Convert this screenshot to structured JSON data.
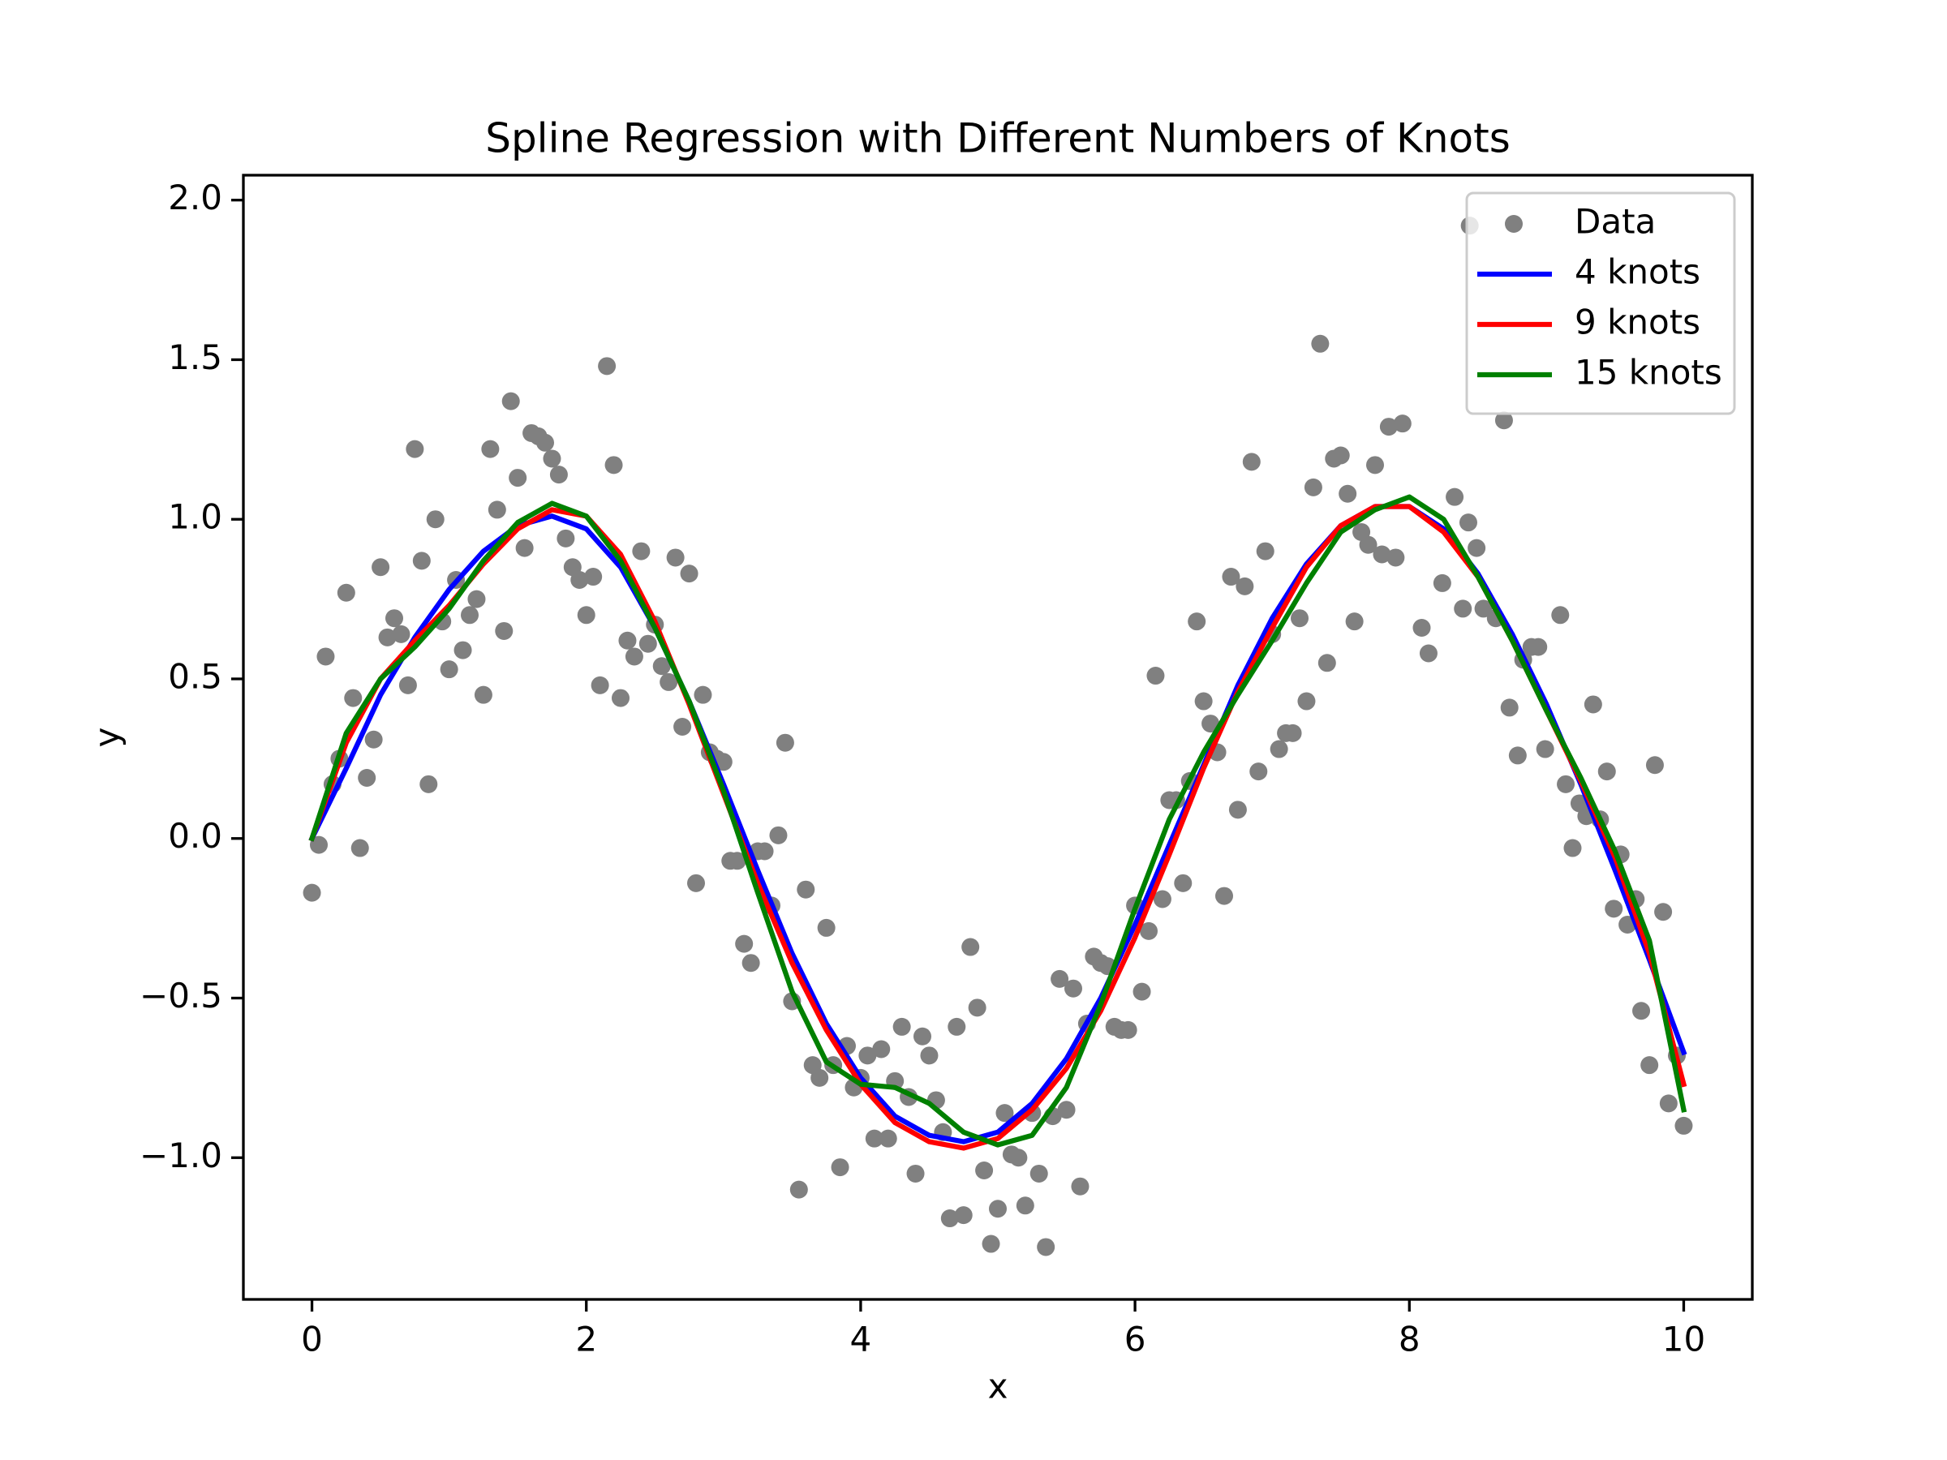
{
  "chart_data": {
    "type": "scatter",
    "title": "Spline Regression with Different Numbers of Knots",
    "xlabel": "x",
    "ylabel": "y",
    "xlim": [
      -0.5,
      10.5
    ],
    "ylim": [
      -1.444,
      2.078
    ],
    "xticks": [
      0,
      2,
      4,
      6,
      8,
      10
    ],
    "yticks": [
      {
        "value": -1.0,
        "label": "−1.0"
      },
      {
        "value": -0.5,
        "label": "−0.5"
      },
      {
        "value": 0.0,
        "label": "0.0"
      },
      0.5,
      {
        "value": 1.0,
        "label": "1.0"
      },
      1.5,
      {
        "value": 2.0,
        "label": "2.0"
      }
    ],
    "legend": "upper right",
    "series": [
      {
        "name": "Data",
        "type": "scatter",
        "color": "#808080",
        "x": [
          0,
          0.05,
          0.1,
          0.15,
          0.2,
          0.25,
          0.3,
          0.35,
          0.4,
          0.45,
          0.5,
          0.55,
          0.6,
          0.65,
          0.7,
          0.75,
          0.8,
          0.85,
          0.9,
          0.95,
          1.0,
          1.05,
          1.1,
          1.15,
          1.2,
          1.25,
          1.3,
          1.35,
          1.4,
          1.45,
          1.5,
          1.55,
          1.6,
          1.65,
          1.7,
          1.75,
          1.8,
          1.85,
          1.9,
          1.95,
          2.0,
          2.05,
          2.1,
          2.15,
          2.2,
          2.25,
          2.3,
          2.35,
          2.4,
          2.45,
          2.5,
          2.55,
          2.6,
          2.65,
          2.7,
          2.75,
          2.8,
          2.85,
          2.9,
          2.95,
          3.0,
          3.05,
          3.1,
          3.15,
          3.2,
          3.25,
          3.3,
          3.35,
          3.4,
          3.45,
          3.5,
          3.55,
          3.6,
          3.65,
          3.7,
          3.75,
          3.8,
          3.85,
          3.9,
          3.95,
          4.0,
          4.05,
          4.1,
          4.15,
          4.2,
          4.25,
          4.3,
          4.35,
          4.4,
          4.45,
          4.5,
          4.55,
          4.6,
          4.65,
          4.7,
          4.75,
          4.8,
          4.85,
          4.9,
          4.95,
          5.0,
          5.05,
          5.1,
          5.15,
          5.2,
          5.25,
          5.3,
          5.35,
          5.4,
          5.45,
          5.5,
          5.55,
          5.6,
          5.65,
          5.7,
          5.75,
          5.8,
          5.85,
          5.9,
          5.95,
          6.0,
          6.05,
          6.1,
          6.15,
          6.2,
          6.25,
          6.3,
          6.35,
          6.4,
          6.45,
          6.5,
          6.55,
          6.6,
          6.65,
          6.7,
          6.75,
          6.8,
          6.85,
          6.9,
          6.95,
          7.0,
          7.05,
          7.1,
          7.15,
          7.2,
          7.25,
          7.3,
          7.35,
          7.4,
          7.45,
          7.5,
          7.55,
          7.6,
          7.65,
          7.7,
          7.75,
          7.8,
          7.85,
          7.9,
          7.95,
          8.09,
          8.14,
          8.24,
          8.33,
          8.39,
          8.43,
          8.44,
          8.49,
          8.54,
          8.63,
          8.69,
          8.73,
          8.79,
          8.83,
          8.89,
          8.94,
          8.99,
          9.1,
          9.14,
          9.19,
          9.24,
          9.29,
          9.34,
          9.39,
          9.44,
          9.49,
          9.54,
          9.59,
          9.65,
          9.69,
          9.75,
          9.79,
          9.85,
          9.89,
          9.95,
          10.0
        ],
        "values": [
          -0.17,
          -0.02,
          0.57,
          0.17,
          0.25,
          0.77,
          0.44,
          -0.03,
          0.19,
          0.31,
          0.85,
          0.63,
          0.69,
          0.64,
          0.48,
          1.22,
          0.87,
          0.17,
          1.0,
          0.68,
          0.53,
          0.81,
          0.59,
          0.7,
          0.75,
          0.45,
          1.22,
          1.03,
          0.65,
          1.37,
          1.13,
          0.91,
          1.27,
          1.26,
          1.24,
          1.19,
          1.14,
          0.94,
          0.85,
          0.81,
          0.7,
          0.82,
          0.48,
          1.48,
          1.17,
          0.44,
          0.62,
          0.57,
          0.9,
          0.61,
          0.67,
          0.54,
          0.49,
          0.88,
          0.35,
          0.83,
          -0.14,
          0.45,
          0.27,
          0.25,
          0.24,
          -0.07,
          -0.07,
          -0.33,
          -0.39,
          -0.04,
          -0.04,
          -0.21,
          0.01,
          0.3,
          -0.51,
          -1.1,
          -0.16,
          -0.71,
          -0.75,
          -0.28,
          -0.71,
          -1.03,
          -0.65,
          -0.78,
          -0.75,
          -0.68,
          -0.94,
          -0.66,
          -0.94,
          -0.76,
          -0.59,
          -0.81,
          -1.05,
          -0.62,
          -0.68,
          -0.82,
          -0.92,
          -1.19,
          -0.59,
          -1.18,
          -0.34,
          -0.53,
          -1.04,
          -1.27,
          -1.16,
          -0.86,
          -0.99,
          -1.0,
          -1.15,
          -0.86,
          -1.05,
          -1.28,
          -0.87,
          -0.44,
          -0.85,
          -0.47,
          -1.09,
          -0.58,
          -0.37,
          -0.39,
          -0.4,
          -0.59,
          -0.6,
          -0.6,
          -0.21,
          -0.48,
          -0.29,
          0.51,
          -0.19,
          0.12,
          0.12,
          -0.14,
          0.18,
          0.68,
          0.43,
          0.36,
          0.27,
          -0.18,
          0.82,
          0.09,
          0.79,
          1.18,
          0.21,
          0.9,
          0.64,
          0.28,
          0.33,
          0.33,
          0.69,
          0.43,
          1.1,
          1.55,
          0.55,
          1.19,
          1.2,
          1.08,
          0.68,
          0.96,
          0.92,
          1.17,
          0.89,
          1.29,
          0.88,
          1.3,
          0.66,
          0.58,
          0.8,
          1.07,
          0.72,
          0.99,
          1.92,
          0.91,
          0.72,
          0.69,
          1.31,
          0.41,
          0.26,
          0.56,
          0.6,
          0.6,
          0.28,
          0.7,
          0.17,
          -0.03,
          0.11,
          0.07,
          0.42,
          0.06,
          0.21,
          -0.22,
          -0.05,
          -0.27,
          -0.19,
          -0.54,
          -0.71,
          0.23,
          -0.23,
          -0.83,
          -0.68,
          -0.9
        ]
      },
      {
        "name": "4 knots",
        "type": "line",
        "color": "#0000ff",
        "x": [
          0,
          0.25,
          0.5,
          0.75,
          1,
          1.25,
          1.5,
          1.75,
          2,
          2.25,
          2.5,
          2.75,
          3,
          3.25,
          3.5,
          3.75,
          4,
          4.25,
          4.5,
          4.75,
          5,
          5.25,
          5.5,
          5.75,
          6,
          6.25,
          6.5,
          6.75,
          7,
          7.25,
          7.5,
          7.75,
          8,
          8.25,
          8.5,
          8.75,
          9,
          9.25,
          9.5,
          9.75,
          10
        ],
        "values": [
          0,
          0.22,
          0.45,
          0.63,
          0.78,
          0.9,
          0.98,
          1.01,
          0.97,
          0.85,
          0.66,
          0.43,
          0.17,
          -0.1,
          -0.36,
          -0.58,
          -0.75,
          -0.87,
          -0.93,
          -0.95,
          -0.92,
          -0.83,
          -0.69,
          -0.5,
          -0.27,
          -0.02,
          0.23,
          0.48,
          0.69,
          0.86,
          0.98,
          1.04,
          1.04,
          0.97,
          0.83,
          0.64,
          0.42,
          0.17,
          -0.1,
          -0.38,
          -0.67
        ]
      },
      {
        "name": "9 knots",
        "type": "line",
        "color": "#ff0000",
        "x": [
          0,
          0.25,
          0.5,
          0.75,
          1,
          1.25,
          1.5,
          1.75,
          2,
          2.25,
          2.5,
          2.75,
          3,
          3.25,
          3.5,
          3.75,
          4,
          4.25,
          4.5,
          4.75,
          5,
          5.25,
          5.5,
          5.75,
          6,
          6.25,
          6.5,
          6.75,
          7,
          7.25,
          7.5,
          7.75,
          8,
          8.25,
          8.5,
          8.75,
          9,
          9.25,
          9.5,
          9.75,
          10
        ],
        "values": [
          0,
          0.3,
          0.5,
          0.62,
          0.73,
          0.86,
          0.97,
          1.03,
          1.01,
          0.89,
          0.68,
          0.42,
          0.14,
          -0.14,
          -0.39,
          -0.6,
          -0.77,
          -0.89,
          -0.95,
          -0.97,
          -0.94,
          -0.85,
          -0.72,
          -0.54,
          -0.31,
          -0.05,
          0.22,
          0.46,
          0.66,
          0.85,
          0.98,
          1.04,
          1.04,
          0.96,
          0.82,
          0.62,
          0.4,
          0.18,
          -0.06,
          -0.36,
          -0.77
        ]
      },
      {
        "name": "15 knots",
        "type": "line",
        "color": "#008000",
        "x": [
          0,
          0.25,
          0.5,
          0.75,
          1,
          1.25,
          1.5,
          1.75,
          2,
          2.25,
          2.5,
          2.75,
          3,
          3.25,
          3.5,
          3.75,
          4,
          4.25,
          4.5,
          4.75,
          5,
          5.25,
          5.5,
          5.75,
          6,
          6.25,
          6.5,
          6.75,
          7,
          7.25,
          7.5,
          7.75,
          8,
          8.25,
          8.5,
          8.75,
          9,
          9.25,
          9.5,
          9.75,
          10
        ],
        "values": [
          0,
          0.33,
          0.5,
          0.6,
          0.72,
          0.87,
          0.99,
          1.05,
          1.01,
          0.87,
          0.66,
          0.43,
          0.15,
          -0.17,
          -0.48,
          -0.7,
          -0.77,
          -0.78,
          -0.83,
          -0.92,
          -0.96,
          -0.93,
          -0.78,
          -0.52,
          -0.22,
          0.06,
          0.27,
          0.45,
          0.62,
          0.8,
          0.96,
          1.03,
          1.07,
          1.0,
          0.82,
          0.62,
          0.4,
          0.19,
          -0.04,
          -0.32,
          -0.85
        ]
      }
    ]
  }
}
